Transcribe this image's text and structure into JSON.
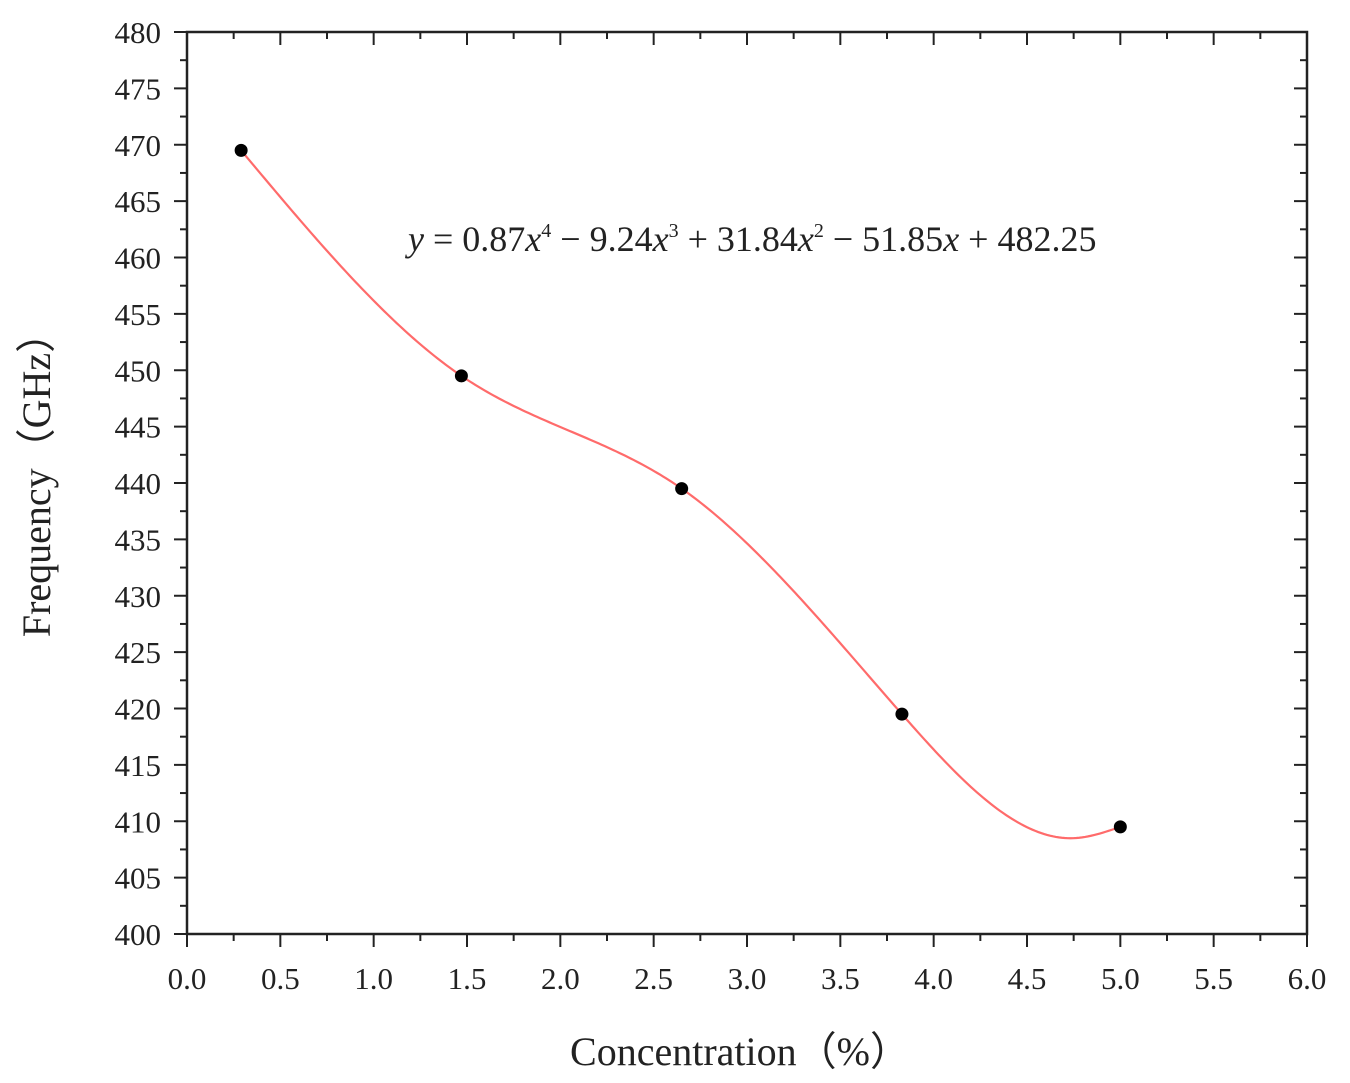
{
  "chart_data": {
    "type": "scatter",
    "title": "",
    "xlabel": "Concentration（%）",
    "ylabel": "Frequency（GHz）",
    "xlim": [
      0,
      6
    ],
    "ylim": [
      400,
      480
    ],
    "x_ticks": [
      0.0,
      0.5,
      1.0,
      1.5,
      2.0,
      2.5,
      3.0,
      3.5,
      4.0,
      4.5,
      5.0,
      5.5,
      6.0
    ],
    "x_tick_labels": [
      "0.0",
      "0.5",
      "1.0",
      "1.5",
      "2.0",
      "2.5",
      "3.0",
      "3.5",
      "4.0",
      "4.5",
      "5.0",
      "5.5",
      "6.0"
    ],
    "y_ticks": [
      400,
      405,
      410,
      415,
      420,
      425,
      430,
      435,
      440,
      445,
      450,
      455,
      460,
      465,
      470,
      475,
      480
    ],
    "y_tick_labels": [
      "400",
      "405",
      "410",
      "415",
      "420",
      "425",
      "430",
      "435",
      "440",
      "445",
      "450",
      "455",
      "460",
      "465",
      "470",
      "475",
      "480"
    ],
    "series": [
      {
        "x": [
          0.29,
          1.47,
          2.65,
          3.83,
          5.0
        ],
        "y": [
          469.5,
          449.5,
          439.5,
          419.5,
          409.5
        ],
        "color": "#000000",
        "marker": "circle"
      }
    ],
    "fit": {
      "kind": "polynomial",
      "coefficients": [
        0.87,
        -9.24,
        31.84,
        -51.85,
        482.25
      ],
      "x_range": [
        0.29,
        5.0
      ],
      "color": "#ff6b6b",
      "equation_parts": {
        "y": "y",
        "eq": " = 0.87",
        "x4": "x",
        "exp4": "4",
        "t2": " − 9.24",
        "x3": "x",
        "exp3": "3",
        "t3": " + 31.84",
        "x2": "x",
        "exp2": "2",
        "t4": " − 51.85",
        "x1": "x",
        "t5": " + 482.25"
      }
    },
    "grid": false
  }
}
